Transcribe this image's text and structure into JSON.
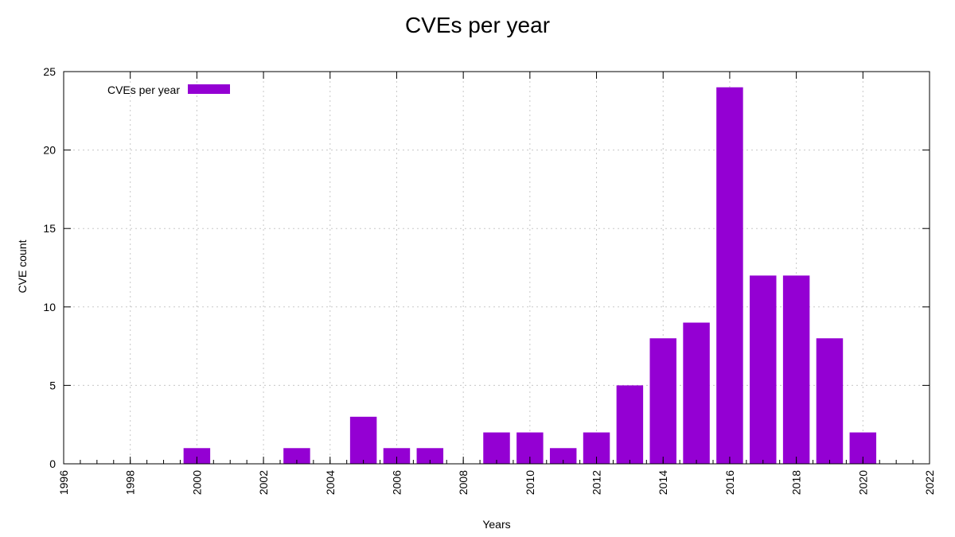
{
  "chart_data": {
    "type": "bar",
    "title": "CVEs per year",
    "xlabel": "Years",
    "ylabel": "CVE count",
    "xlim": [
      1996,
      2022
    ],
    "ylim": [
      0,
      25
    ],
    "x_ticks": [
      "1996",
      "1998",
      "2000",
      "2002",
      "2004",
      "2006",
      "2008",
      "2010",
      "2012",
      "2014",
      "2016",
      "2018",
      "2020",
      "2022"
    ],
    "y_ticks": [
      "0",
      "5",
      "10",
      "15",
      "20",
      "25"
    ],
    "grid": true,
    "legend_position": "top-left",
    "series": [
      {
        "name": "CVEs per year",
        "color": "#9400D3",
        "x": [
          2000,
          2003,
          2005,
          2006,
          2007,
          2009,
          2010,
          2011,
          2012,
          2013,
          2014,
          2015,
          2016,
          2017,
          2018,
          2019,
          2020
        ],
        "values": [
          1,
          1,
          3,
          1,
          1,
          2,
          2,
          1,
          2,
          5,
          8,
          9,
          24,
          12,
          12,
          8,
          2
        ]
      }
    ]
  }
}
